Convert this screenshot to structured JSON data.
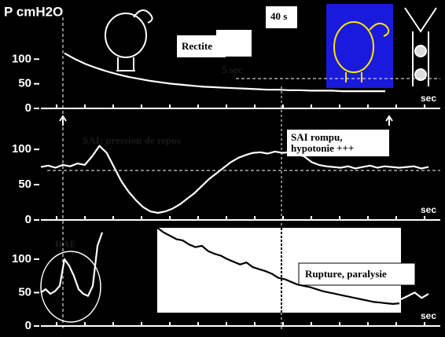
{
  "chart_data": [
    {
      "type": "line",
      "title": "P cmH2O",
      "x_label": "sec",
      "ylim": [
        0,
        185
      ],
      "yticks": [
        0,
        50,
        100
      ],
      "annotations": [
        "Rectite",
        "40 s",
        "5 sec"
      ],
      "series": [
        {
          "color": "#ffffff",
          "values": [
            112,
            100,
            90,
            82,
            75,
            69,
            64,
            60,
            56,
            53,
            50,
            48,
            46,
            44,
            43,
            42,
            41,
            40,
            39,
            38,
            38,
            37,
            37,
            36,
            36,
            36,
            35,
            35,
            35,
            35,
            35
          ]
        }
      ]
    },
    {
      "type": "line",
      "x_label": "sec",
      "ylim": [
        0,
        128
      ],
      "yticks": [
        0,
        50,
        100
      ],
      "annotations": [
        "SAI: pression de repos",
        "SAI rompu, hypotonie +++"
      ],
      "series": [
        {
          "color": "#ffffff",
          "values": [
            75,
            77,
            74,
            78,
            76,
            80,
            78,
            90,
            105,
            95,
            75,
            55,
            40,
            28,
            18,
            12,
            10,
            12,
            16,
            22,
            30,
            38,
            48,
            58,
            66,
            74,
            82,
            88,
            92,
            95,
            96,
            94,
            97,
            95,
            96,
            93,
            90,
            82,
            78,
            76,
            75,
            74,
            76,
            73,
            75,
            77,
            74,
            76,
            75,
            74,
            75,
            76,
            73,
            75
          ]
        }
      ]
    },
    {
      "type": "line",
      "x_label": "sec",
      "ylim": [
        0,
        141
      ],
      "yticks": [
        0,
        50,
        100
      ],
      "annotations": [
        "RAE",
        "Rupture, paralysie"
      ],
      "series": [
        {
          "color": "#ffffff",
          "values": [
            50,
            55,
            48,
            52,
            60,
            100,
            90,
            75,
            55,
            48,
            45,
            60,
            120,
            140
          ]
        },
        {
          "color": "#000000",
          "values": [
            147,
            140,
            135,
            130,
            128,
            122,
            118,
            120,
            112,
            108,
            105,
            100,
            96,
            92,
            95,
            88,
            85,
            82,
            78,
            72,
            70,
            66,
            62,
            60,
            58,
            55,
            52,
            50,
            48,
            46,
            44,
            42,
            40,
            38,
            36,
            35,
            34,
            33,
            34
          ]
        },
        {
          "color": "#ffffff",
          "values": [
            40,
            45,
            50,
            42,
            48
          ]
        }
      ]
    }
  ]
}
